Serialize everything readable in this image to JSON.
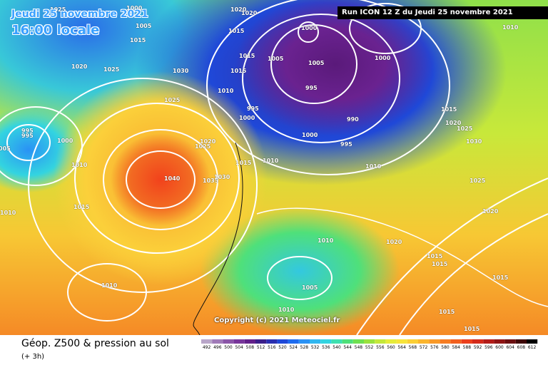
{
  "header": {
    "date": "Jeudi 25 novembre 2021",
    "time": "16:00 locale",
    "run": "Run ICON 12 Z du Jeudi 25 novembre 2021"
  },
  "map": {
    "copyright": "Copyright (c) 2021 Meteociel.fr",
    "isobar_labels": [
      "1025",
      "1000",
      "1005",
      "1015",
      "1020",
      "1025",
      "1030",
      "1025",
      "1010",
      "1015",
      "1005",
      "1000",
      "1005",
      "1000",
      "995",
      "995",
      "1000",
      "990",
      "1000",
      "995",
      "1010",
      "1015",
      "1020",
      "1025",
      "1030",
      "995",
      "995",
      "1000",
      "005",
      "1010",
      "1020",
      "1025",
      "1015",
      "1010",
      "1040",
      "1035",
      "1030",
      "1010",
      "1025",
      "1020",
      "1010",
      "1015",
      "1010",
      "1020",
      "1015",
      "1015",
      "1010",
      "1005",
      "1015",
      "1010",
      "1015",
      "1015",
      "1020",
      "1020",
      "1015",
      "1015"
    ]
  },
  "footer": {
    "title": "Géop. Z500 & pression au sol",
    "subtitle": "(+ 3h)"
  },
  "scale": {
    "labels": [
      "492",
      "496",
      "500",
      "504",
      "508",
      "512",
      "516",
      "520",
      "524",
      "528",
      "532",
      "536",
      "540",
      "544",
      "548",
      "552",
      "556",
      "560",
      "564",
      "568",
      "572",
      "576",
      "580",
      "584",
      "588",
      "592",
      "596",
      "600",
      "604",
      "608",
      "612"
    ],
    "colors": [
      "#b9a6c9",
      "#a07ab8",
      "#8a55a8",
      "#77359a",
      "#62208a",
      "#3b1f8a",
      "#2a2fb0",
      "#1f48d8",
      "#1e6cf0",
      "#2a92f5",
      "#31b7f0",
      "#33d4e0",
      "#3ee0b0",
      "#4fe07a",
      "#6fe050",
      "#9ae23e",
      "#c4e83a",
      "#e6ec3a",
      "#f7e43a",
      "#fbcf35",
      "#fbb52e",
      "#f99a28",
      "#f67d23",
      "#f2601f",
      "#ec3f1c",
      "#d42a1a",
      "#b31c18",
      "#8f1414",
      "#6b0e10",
      "#3e0808",
      "#000000"
    ]
  }
}
